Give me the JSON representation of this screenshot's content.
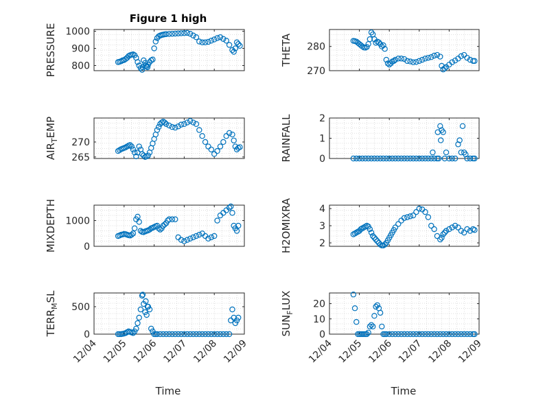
{
  "figure": {
    "title": "Figure 1 high",
    "marker_color": "#0072BD",
    "x_ticks": [
      "12/04",
      "12/05",
      "12/06",
      "12/07",
      "12/08",
      "12/09"
    ],
    "x_label": "Time"
  },
  "chart_data": [
    {
      "type": "scatter",
      "ylabel": "PRESSURE",
      "ylim": [
        770,
        1010
      ],
      "yticks": [
        800,
        900,
        1000
      ],
      "xlim": [
        0,
        5
      ],
      "grid": true,
      "x": [
        0.8,
        0.85,
        0.9,
        0.95,
        1.0,
        1.05,
        1.1,
        1.15,
        1.2,
        1.25,
        1.3,
        1.35,
        1.4,
        1.45,
        1.5,
        1.55,
        1.6,
        1.62,
        1.65,
        1.7,
        1.72,
        1.75,
        1.78,
        1.8,
        1.85,
        1.9,
        1.95,
        2.0,
        2.05,
        2.1,
        2.15,
        2.2,
        2.25,
        2.3,
        2.35,
        2.4,
        2.5,
        2.6,
        2.7,
        2.8,
        2.9,
        3.0,
        3.1,
        3.2,
        3.3,
        3.4,
        3.5,
        3.6,
        3.7,
        3.8,
        3.9,
        4.0,
        4.1,
        4.2,
        4.3,
        4.4,
        4.5,
        4.6,
        4.65,
        4.7,
        4.75,
        4.8,
        4.85
      ],
      "y": [
        820,
        822,
        825,
        830,
        832,
        838,
        845,
        855,
        860,
        863,
        865,
        860,
        845,
        820,
        800,
        785,
        775,
        790,
        830,
        815,
        800,
        795,
        790,
        805,
        820,
        830,
        835,
        900,
        940,
        960,
        970,
        975,
        978,
        980,
        982,
        983,
        984,
        985,
        986,
        987,
        988,
        989,
        990,
        985,
        975,
        965,
        940,
        935,
        935,
        938,
        945,
        952,
        960,
        965,
        955,
        945,
        920,
        890,
        880,
        900,
        935,
        925,
        915
      ]
    },
    {
      "type": "scatter",
      "ylabel": "THETA",
      "ylim": [
        270,
        287
      ],
      "yticks": [
        270,
        280
      ],
      "xlim": [
        0,
        5
      ],
      "grid": true,
      "x": [
        0.8,
        0.85,
        0.9,
        0.95,
        1.0,
        1.05,
        1.1,
        1.15,
        1.2,
        1.25,
        1.3,
        1.35,
        1.4,
        1.45,
        1.5,
        1.55,
        1.6,
        1.65,
        1.7,
        1.75,
        1.8,
        1.85,
        1.9,
        1.95,
        2.0,
        2.05,
        2.1,
        2.15,
        2.2,
        2.3,
        2.4,
        2.5,
        2.6,
        2.7,
        2.8,
        2.9,
        3.0,
        3.1,
        3.2,
        3.3,
        3.4,
        3.5,
        3.6,
        3.7,
        3.75,
        3.8,
        3.85,
        3.9,
        4.0,
        4.1,
        4.2,
        4.3,
        4.4,
        4.5,
        4.6,
        4.7,
        4.8,
        4.85
      ],
      "y": [
        282.3,
        282.2,
        282,
        281.5,
        281,
        280.5,
        280,
        279.6,
        279.5,
        279.8,
        281,
        283,
        285.8,
        285,
        283,
        281.5,
        282,
        281.7,
        281,
        280,
        280.5,
        279,
        274.5,
        273,
        272.5,
        273,
        273.8,
        274,
        274.5,
        275,
        275,
        274.8,
        274,
        273.8,
        273.5,
        273.6,
        274,
        274.5,
        275,
        275.3,
        275.6,
        276.2,
        276.5,
        275.8,
        272,
        270.5,
        271,
        271.5,
        272.5,
        273.5,
        274.2,
        275,
        276,
        276.5,
        275.3,
        274.5,
        274,
        274
      ]
    },
    {
      "type": "scatter",
      "ylabel": "AIR_TEMP",
      "ylim": [
        264.5,
        278
      ],
      "yticks": [
        265,
        270
      ],
      "xlim": [
        0,
        5
      ],
      "grid": true,
      "x": [
        0.8,
        0.85,
        0.9,
        0.95,
        1.0,
        1.05,
        1.1,
        1.15,
        1.2,
        1.25,
        1.3,
        1.35,
        1.4,
        1.45,
        1.5,
        1.55,
        1.6,
        1.65,
        1.7,
        1.75,
        1.8,
        1.85,
        1.9,
        1.95,
        2.0,
        2.05,
        2.1,
        2.15,
        2.2,
        2.25,
        2.3,
        2.35,
        2.4,
        2.5,
        2.6,
        2.7,
        2.8,
        2.9,
        3.0,
        3.1,
        3.2,
        3.3,
        3.4,
        3.5,
        3.6,
        3.7,
        3.8,
        3.9,
        4.0,
        4.1,
        4.2,
        4.3,
        4.4,
        4.5,
        4.6,
        4.65,
        4.7,
        4.75,
        4.8,
        4.85
      ],
      "y": [
        267,
        267.3,
        267.6,
        267.8,
        268,
        268.2,
        268.5,
        268.8,
        269,
        268.5,
        267.5,
        266.5,
        265.2,
        266.5,
        268.5,
        267.5,
        266,
        265.5,
        265,
        265.2,
        265.5,
        266.5,
        268,
        269.5,
        271,
        272.5,
        274,
        275,
        276,
        276.5,
        276.8,
        276.5,
        276,
        275.5,
        275,
        274.8,
        275.2,
        275.8,
        276,
        276.5,
        277,
        276.5,
        276,
        274,
        272,
        270,
        268.5,
        267.5,
        266,
        267,
        268.5,
        270,
        272,
        273,
        272.5,
        270.5,
        268.5,
        267.5,
        268,
        268.3
      ]
    },
    {
      "type": "scatter",
      "ylabel": "RAINFALL",
      "ylim": [
        0,
        2
      ],
      "yticks": [
        0,
        1,
        2
      ],
      "xlim": [
        0,
        5
      ],
      "grid": true,
      "x": [
        0.8,
        0.9,
        1.0,
        1.1,
        1.2,
        1.3,
        1.4,
        1.5,
        1.6,
        1.7,
        1.8,
        1.9,
        2.0,
        2.1,
        2.2,
        2.3,
        2.4,
        2.5,
        2.6,
        2.7,
        2.8,
        2.9,
        3.0,
        3.1,
        3.2,
        3.3,
        3.4,
        3.45,
        3.5,
        3.6,
        3.62,
        3.65,
        3.7,
        3.72,
        3.75,
        3.8,
        3.85,
        3.9,
        4.0,
        4.1,
        4.2,
        4.3,
        4.35,
        4.4,
        4.45,
        4.5,
        4.55,
        4.6,
        4.7,
        4.8,
        4.85
      ],
      "y": [
        0,
        0,
        0,
        0,
        0,
        0,
        0,
        0,
        0,
        0,
        0,
        0,
        0,
        0,
        0,
        0,
        0,
        0,
        0,
        0,
        0,
        0,
        0,
        0,
        0,
        0,
        0,
        0.3,
        0,
        0,
        1.3,
        0,
        1.6,
        0.9,
        1.4,
        1.3,
        0,
        0.3,
        0,
        0,
        0,
        0.7,
        0.9,
        0.3,
        1.6,
        0.3,
        0.2,
        0,
        0,
        0,
        0
      ]
    },
    {
      "type": "scatter",
      "ylabel": "MIXDEPTH",
      "ylim": [
        0,
        1600
      ],
      "yticks": [
        0,
        1000
      ],
      "xlim": [
        0,
        5
      ],
      "grid": true,
      "x": [
        0.8,
        0.85,
        0.9,
        0.95,
        1.0,
        1.05,
        1.1,
        1.15,
        1.2,
        1.25,
        1.3,
        1.35,
        1.4,
        1.45,
        1.5,
        1.55,
        1.6,
        1.65,
        1.7,
        1.75,
        1.8,
        1.85,
        1.9,
        1.95,
        2.0,
        2.05,
        2.1,
        2.15,
        2.2,
        2.25,
        2.3,
        2.35,
        2.4,
        2.45,
        2.5,
        2.6,
        2.7,
        2.8,
        2.9,
        3.0,
        3.1,
        3.2,
        3.3,
        3.4,
        3.5,
        3.6,
        3.7,
        3.8,
        3.9,
        4.0,
        4.1,
        4.2,
        4.3,
        4.4,
        4.5,
        4.55,
        4.6,
        4.65,
        4.7,
        4.75,
        4.8
      ],
      "y": [
        400,
        420,
        450,
        460,
        480,
        470,
        450,
        430,
        420,
        450,
        500,
        700,
        1050,
        1150,
        950,
        600,
        560,
        550,
        580,
        600,
        620,
        650,
        700,
        720,
        750,
        780,
        800,
        700,
        650,
        700,
        800,
        850,
        900,
        1000,
        1050,
        1050,
        1050,
        350,
        250,
        200,
        250,
        300,
        350,
        400,
        450,
        500,
        400,
        300,
        350,
        400,
        1000,
        1200,
        1300,
        1400,
        1500,
        1550,
        1300,
        800,
        700,
        600,
        800
      ]
    },
    {
      "type": "scatter",
      "ylabel": "H2OMIXRA",
      "ylim": [
        1.8,
        4.2
      ],
      "yticks": [
        2,
        3,
        4
      ],
      "xlim": [
        0,
        5
      ],
      "grid": true,
      "x": [
        0.8,
        0.85,
        0.9,
        0.95,
        1.0,
        1.05,
        1.1,
        1.15,
        1.2,
        1.25,
        1.3,
        1.35,
        1.4,
        1.45,
        1.5,
        1.55,
        1.6,
        1.65,
        1.7,
        1.75,
        1.8,
        1.85,
        1.9,
        1.95,
        2.0,
        2.05,
        2.1,
        2.15,
        2.2,
        2.3,
        2.4,
        2.5,
        2.6,
        2.7,
        2.8,
        2.9,
        3.0,
        3.1,
        3.2,
        3.3,
        3.4,
        3.5,
        3.6,
        3.7,
        3.75,
        3.8,
        3.85,
        3.9,
        4.0,
        4.1,
        4.2,
        4.3,
        4.4,
        4.5,
        4.6,
        4.7,
        4.8,
        4.85
      ],
      "y": [
        2.5,
        2.55,
        2.6,
        2.65,
        2.7,
        2.8,
        2.85,
        2.9,
        2.95,
        3.0,
        2.95,
        2.8,
        2.6,
        2.4,
        2.3,
        2.2,
        2.1,
        2.0,
        1.9,
        1.85,
        1.85,
        1.9,
        2.0,
        2.15,
        2.3,
        2.45,
        2.6,
        2.75,
        2.9,
        3.1,
        3.3,
        3.45,
        3.5,
        3.55,
        3.6,
        3.8,
        4.0,
        3.95,
        3.8,
        3.5,
        3.0,
        2.8,
        2.4,
        2.2,
        2.3,
        2.5,
        2.6,
        2.7,
        2.8,
        2.9,
        3.0,
        2.9,
        2.7,
        2.6,
        2.8,
        2.7,
        2.8,
        2.75
      ]
    },
    {
      "type": "scatter",
      "ylabel": "TERR_MSL",
      "ylim": [
        0,
        750
      ],
      "yticks": [
        0,
        500
      ],
      "xlim": [
        0,
        5
      ],
      "grid": true,
      "x": [
        0.8,
        0.85,
        0.9,
        0.95,
        1.0,
        1.05,
        1.1,
        1.15,
        1.2,
        1.25,
        1.3,
        1.35,
        1.4,
        1.45,
        1.5,
        1.55,
        1.6,
        1.62,
        1.65,
        1.7,
        1.72,
        1.75,
        1.78,
        1.8,
        1.85,
        1.9,
        1.95,
        2.0,
        2.05,
        2.1,
        2.2,
        2.3,
        2.4,
        2.5,
        2.6,
        2.7,
        2.8,
        2.9,
        3.0,
        3.1,
        3.2,
        3.3,
        3.4,
        3.5,
        3.6,
        3.7,
        3.8,
        3.9,
        4.0,
        4.1,
        4.2,
        4.3,
        4.4,
        4.5,
        4.55,
        4.6,
        4.65,
        4.7,
        4.75,
        4.8
      ],
      "y": [
        0,
        0,
        0,
        5,
        10,
        20,
        35,
        50,
        40,
        30,
        20,
        50,
        100,
        200,
        300,
        450,
        700,
        720,
        550,
        400,
        600,
        350,
        500,
        500,
        450,
        100,
        50,
        0,
        0,
        0,
        0,
        0,
        0,
        0,
        0,
        0,
        0,
        0,
        0,
        0,
        0,
        0,
        0,
        0,
        0,
        0,
        0,
        0,
        0,
        0,
        0,
        0,
        0,
        0,
        250,
        450,
        300,
        200,
        250,
        300
      ]
    },
    {
      "type": "scatter",
      "ylabel": "SUN_FLUX",
      "ylim": [
        0,
        27
      ],
      "yticks": [
        0,
        10,
        20
      ],
      "xlim": [
        0,
        5
      ],
      "grid": true,
      "x": [
        0.8,
        0.85,
        0.9,
        0.95,
        1.0,
        1.05,
        1.1,
        1.15,
        1.2,
        1.25,
        1.3,
        1.35,
        1.4,
        1.45,
        1.5,
        1.55,
        1.6,
        1.65,
        1.7,
        1.75,
        1.8,
        1.85,
        1.9,
        2.0,
        2.1,
        2.2,
        2.3,
        2.4,
        2.5,
        2.6,
        2.7,
        2.8,
        2.9,
        3.0,
        3.1,
        3.2,
        3.3,
        3.4,
        3.5,
        3.6,
        3.7,
        3.8,
        3.9,
        4.0,
        4.1,
        4.2,
        4.3,
        4.4,
        4.5,
        4.6,
        4.7,
        4.8,
        4.85
      ],
      "y": [
        26,
        17,
        8,
        0,
        0,
        0,
        0,
        0,
        0,
        0,
        1,
        5,
        6,
        5,
        12,
        18,
        19,
        17,
        14,
        5,
        0,
        0,
        0,
        0,
        0,
        0,
        0,
        0,
        0,
        0,
        0,
        0,
        0,
        0,
        0,
        0,
        0,
        0,
        0,
        0,
        0,
        0,
        0,
        0,
        0,
        0,
        0,
        0,
        0,
        0,
        0,
        0,
        0
      ]
    }
  ]
}
